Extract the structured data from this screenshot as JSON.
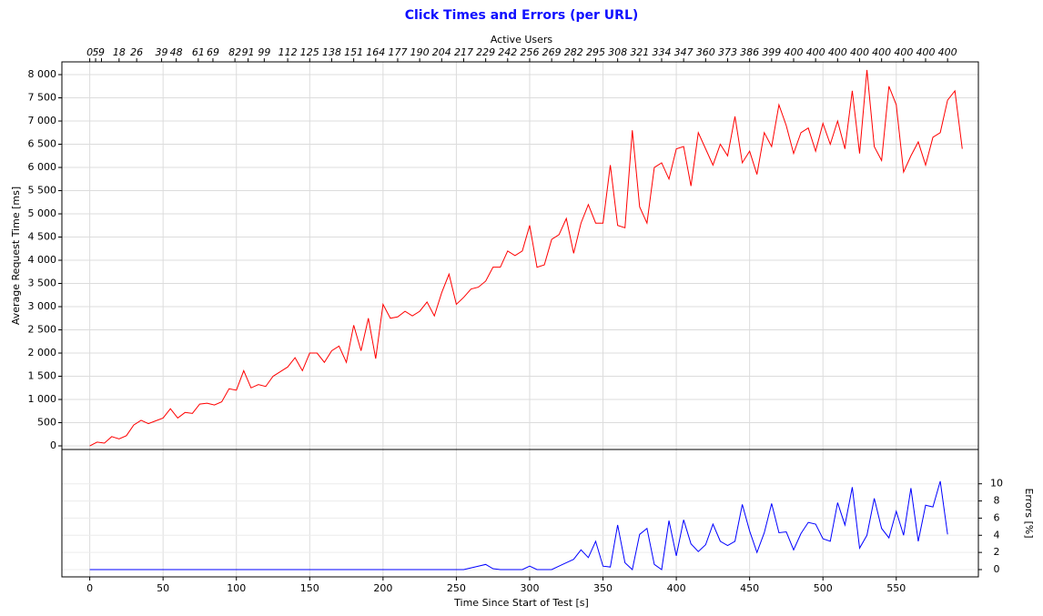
{
  "chart_data": {
    "type": "line",
    "title": "Click Times and Errors (per URL)",
    "top_axis": {
      "label": "Active Users",
      "ticks": [
        {
          "value": 0,
          "label": "0"
        },
        {
          "value": 4,
          "label": "5"
        },
        {
          "value": 8,
          "label": "9"
        },
        {
          "value": 20,
          "label": "18"
        },
        {
          "value": 32,
          "label": "26"
        },
        {
          "value": 49,
          "label": "39"
        },
        {
          "value": 59,
          "label": "48"
        },
        {
          "value": 74,
          "label": "61"
        },
        {
          "value": 84,
          "label": "69"
        },
        {
          "value": 99,
          "label": "82"
        },
        {
          "value": 108,
          "label": "91"
        },
        {
          "value": 119,
          "label": "99"
        },
        {
          "value": 135,
          "label": "112"
        },
        {
          "value": 150,
          "label": "125"
        },
        {
          "value": 165,
          "label": "138"
        },
        {
          "value": 180,
          "label": "151"
        },
        {
          "value": 195,
          "label": "164"
        },
        {
          "value": 210,
          "label": "177"
        },
        {
          "value": 225,
          "label": "190"
        },
        {
          "value": 240,
          "label": "204"
        },
        {
          "value": 255,
          "label": "217"
        },
        {
          "value": 270,
          "label": "229"
        },
        {
          "value": 285,
          "label": "242"
        },
        {
          "value": 300,
          "label": "256"
        },
        {
          "value": 315,
          "label": "269"
        },
        {
          "value": 330,
          "label": "282"
        },
        {
          "value": 345,
          "label": "295"
        },
        {
          "value": 360,
          "label": "308"
        },
        {
          "value": 375,
          "label": "321"
        },
        {
          "value": 390,
          "label": "334"
        },
        {
          "value": 405,
          "label": "347"
        },
        {
          "value": 420,
          "label": "360"
        },
        {
          "value": 435,
          "label": "373"
        },
        {
          "value": 450,
          "label": "386"
        },
        {
          "value": 465,
          "label": "399"
        },
        {
          "value": 480,
          "label": "400"
        },
        {
          "value": 495,
          "label": "400"
        },
        {
          "value": 510,
          "label": "400"
        },
        {
          "value": 525,
          "label": "400"
        },
        {
          "value": 540,
          "label": "400"
        },
        {
          "value": 555,
          "label": "400"
        },
        {
          "value": 570,
          "label": "400"
        },
        {
          "value": 585,
          "label": "400"
        }
      ]
    },
    "xlabel": "Time Since Start of Test [s]",
    "xlim": [
      -19,
      606
    ],
    "xticks": [
      0,
      50,
      100,
      150,
      200,
      250,
      300,
      350,
      400,
      450,
      500,
      550
    ],
    "ylabel": "Average Request Time [ms]",
    "ylim": [
      -78,
      8275
    ],
    "yticks": [
      0,
      500,
      {
        "value": 1000,
        "label": "1 000"
      },
      {
        "value": 1500,
        "label": "1 500"
      },
      {
        "value": 2000,
        "label": "2 000"
      },
      {
        "value": 2500,
        "label": "2 500"
      },
      {
        "value": 3000,
        "label": "3 000"
      },
      {
        "value": 3500,
        "label": "3 500"
      },
      {
        "value": 4000,
        "label": "4 000"
      },
      {
        "value": 4500,
        "label": "4 500"
      },
      {
        "value": 5000,
        "label": "5 000"
      },
      {
        "value": 5500,
        "label": "5 500"
      },
      {
        "value": 6000,
        "label": "6 000"
      },
      {
        "value": 6500,
        "label": "6 500"
      },
      {
        "value": 7000,
        "label": "7 000"
      },
      {
        "value": 7500,
        "label": "7 500"
      },
      {
        "value": 8000,
        "label": "8 000"
      }
    ],
    "y2label": "Errors [%]",
    "y2lim": [
      -0.85,
      14
    ],
    "y2ticks": [
      0,
      2,
      4,
      6,
      8,
      10
    ],
    "grid": true,
    "series": [
      {
        "color": "#ff0000",
        "x": [
          0,
          5,
          10,
          15,
          20,
          25,
          30,
          35,
          40,
          45,
          50,
          55,
          60,
          65,
          70,
          75,
          80,
          85,
          90,
          95,
          100,
          105,
          110,
          115,
          120,
          125,
          130,
          135,
          140,
          145,
          150,
          155,
          160,
          165,
          170,
          175,
          180,
          185,
          190,
          195,
          200,
          205,
          210,
          215,
          220,
          225,
          230,
          235,
          240,
          245,
          250,
          255,
          260,
          265,
          270,
          275,
          280,
          285,
          290,
          295,
          300,
          305,
          310,
          315,
          320,
          325,
          330,
          335,
          340,
          345,
          350,
          355,
          360,
          365,
          370,
          375,
          380,
          385,
          390,
          395,
          400,
          405,
          410,
          415,
          420,
          425,
          430,
          435,
          440,
          445,
          450,
          455,
          460,
          465,
          470,
          475,
          480,
          485,
          490,
          495,
          500,
          505,
          510,
          515,
          520,
          525,
          530,
          535,
          540,
          545,
          550,
          555,
          560,
          565,
          570,
          575,
          580,
          585,
          590,
          595
        ],
        "values": [
          0,
          80,
          60,
          200,
          150,
          220,
          450,
          550,
          480,
          540,
          600,
          800,
          600,
          720,
          700,
          900,
          920,
          880,
          950,
          1230,
          1200,
          1620,
          1250,
          1320,
          1280,
          1500,
          1600,
          1700,
          1900,
          1620,
          2000,
          2000,
          1800,
          2050,
          2150,
          1800,
          2600,
          2050,
          2750,
          1880,
          3050,
          2750,
          2780,
          2900,
          2800,
          2900,
          3100,
          2800,
          3300,
          3700,
          3050,
          3200,
          3380,
          3420,
          3550,
          3850,
          3850,
          4200,
          4100,
          4200,
          4750,
          3850,
          3900,
          4450,
          4550,
          4900,
          4150,
          4800,
          5200,
          4800,
          4800,
          6050,
          4750,
          4700,
          6800,
          5150,
          4800,
          6000,
          6100,
          5750,
          6400,
          6450,
          5600,
          6750,
          6400,
          6050,
          6500,
          6250,
          7100,
          6100,
          6350,
          5850,
          6750,
          6450,
          7350,
          6900,
          6300,
          6750,
          6850,
          6350,
          6950,
          6500,
          7000,
          6400,
          7650,
          6300,
          8100,
          6450,
          6150,
          7750,
          7350,
          5900,
          6250,
          6550,
          6050,
          6650,
          6750,
          7450,
          7650,
          6400
        ]
      },
      {
        "color": "#0000ff",
        "axis": "y2",
        "x": [
          0,
          5,
          10,
          15,
          20,
          25,
          30,
          35,
          40,
          45,
          50,
          55,
          60,
          65,
          70,
          75,
          80,
          85,
          90,
          95,
          100,
          105,
          110,
          115,
          120,
          125,
          130,
          135,
          140,
          145,
          150,
          155,
          160,
          165,
          170,
          175,
          180,
          185,
          190,
          195,
          200,
          205,
          210,
          215,
          220,
          225,
          230,
          235,
          240,
          245,
          250,
          255,
          260,
          265,
          270,
          275,
          280,
          285,
          290,
          295,
          300,
          305,
          310,
          315,
          320,
          325,
          330,
          335,
          340,
          345,
          350,
          355,
          360,
          365,
          370,
          375,
          380,
          385,
          390,
          395,
          400,
          405,
          410,
          415,
          420,
          425,
          430,
          435,
          440,
          445,
          450,
          455,
          460,
          465,
          470,
          475,
          480,
          485,
          490,
          495,
          500,
          505,
          510,
          515,
          520,
          525,
          530,
          535,
          540,
          545,
          550,
          555,
          560,
          565,
          570,
          575,
          580,
          585
        ],
        "values": [
          0,
          0,
          0,
          0,
          0,
          0,
          0,
          0,
          0,
          0,
          0,
          0,
          0,
          0,
          0,
          0,
          0,
          0,
          0,
          0,
          0,
          0,
          0,
          0,
          0,
          0,
          0,
          0,
          0,
          0,
          0,
          0,
          0,
          0,
          0,
          0,
          0,
          0,
          0,
          0,
          0,
          0,
          0,
          0,
          0,
          0,
          0,
          0,
          0,
          0,
          0,
          0,
          0.2,
          0.4,
          0.6,
          0.1,
          0,
          0,
          0,
          0,
          0.4,
          0,
          0,
          0,
          0.4,
          0.8,
          1.2,
          2.3,
          1.4,
          3.3,
          0.4,
          0.3,
          5.2,
          0.8,
          0,
          4.1,
          4.8,
          0.6,
          0,
          5.7,
          1.6,
          5.8,
          3,
          2.1,
          2.9,
          5.3,
          3.3,
          2.8,
          3.3,
          7.6,
          4.5,
          2,
          4.3,
          7.7,
          4.3,
          4.4,
          2.3,
          4.2,
          5.5,
          5.3,
          3.6,
          3.3,
          7.8,
          5.2,
          9.6,
          2.5,
          4,
          8.3,
          4.8,
          3.7,
          6.8,
          4,
          9.5,
          3.3,
          7.5,
          7.3,
          10.3,
          4.1
        ]
      }
    ]
  }
}
